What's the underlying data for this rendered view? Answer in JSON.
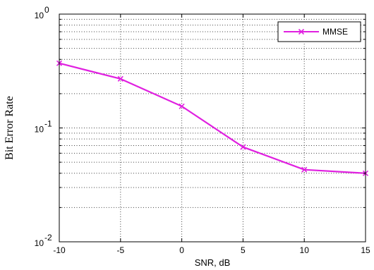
{
  "chart_data": {
    "type": "line",
    "title": "",
    "xlabel": "SNR, dB",
    "ylabel": "Bit Error Rate",
    "x": [
      -10,
      -5,
      0,
      5,
      10,
      15
    ],
    "xlim": [
      -10,
      15
    ],
    "ylim": [
      0.01,
      1
    ],
    "yscale": "log",
    "grid": true,
    "grid_style": "dotted",
    "x_ticks": [
      "-10",
      "-5",
      "0",
      "5",
      "10",
      "15"
    ],
    "y_ticks": [
      {
        "base": "10",
        "exp": "-2",
        "value": 0.01
      },
      {
        "base": "10",
        "exp": "-1",
        "value": 0.1
      },
      {
        "base": "10",
        "exp": "0",
        "value": 1
      }
    ],
    "legend_position": "top-right",
    "series": [
      {
        "name": "MMSE",
        "color": "#e020e0",
        "marker": "x",
        "values": [
          0.37,
          0.27,
          0.155,
          0.068,
          0.043,
          0.04
        ]
      }
    ]
  }
}
